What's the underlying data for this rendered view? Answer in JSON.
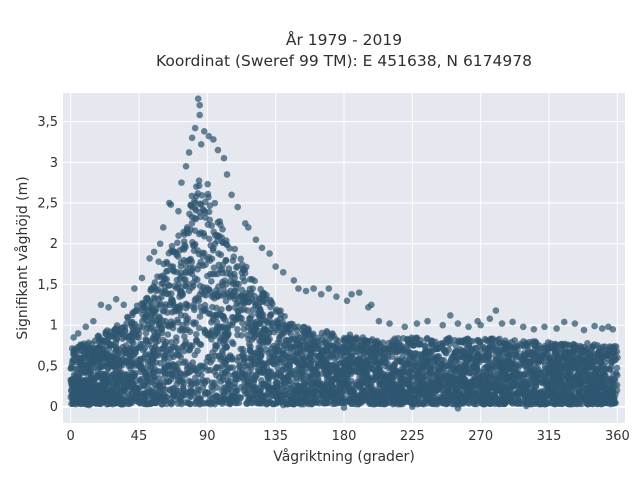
{
  "chart_data": {
    "type": "scatter",
    "title": "År 1979 - 2019",
    "subtitle": "Koordinat (Sweref 99 TM): E 451638, N 6174978",
    "xlabel": "Vågriktning (grader)",
    "ylabel": "Signifikant våghöjd (m)",
    "xlim": [
      -5,
      365
    ],
    "ylim": [
      -0.2,
      3.85
    ],
    "x_ticks": [
      0,
      45,
      90,
      135,
      180,
      225,
      270,
      315,
      360
    ],
    "x_tick_labels": [
      "0",
      "45",
      "90",
      "135",
      "180",
      "225",
      "270",
      "315",
      "360"
    ],
    "y_ticks": [
      0,
      0.5,
      1,
      1.5,
      2,
      2.5,
      3,
      3.5
    ],
    "y_tick_labels": [
      "0",
      "0,5",
      "1",
      "1,5",
      "2",
      "2,5",
      "3",
      "3,5"
    ],
    "grid": true,
    "legend": "none",
    "series": [
      {
        "name": "",
        "color": "#2f5670",
        "envelope": {
          "direction": [
            0,
            10,
            20,
            30,
            40,
            50,
            60,
            70,
            80,
            85,
            90,
            95,
            100,
            110,
            120,
            130,
            140,
            150,
            160,
            180,
            200,
            225,
            250,
            270,
            290,
            315,
            340,
            360
          ],
          "hs_upper": [
            0.75,
            0.8,
            0.9,
            1.0,
            1.15,
            1.4,
            1.7,
            2.1,
            2.6,
            2.8,
            2.75,
            2.5,
            2.2,
            1.9,
            1.6,
            1.35,
            1.15,
            1.0,
            0.95,
            0.9,
            0.85,
            0.85,
            0.85,
            0.85,
            0.82,
            0.8,
            0.78,
            0.75
          ],
          "hs_lower": 0.03
        },
        "outliers": [
          {
            "x": 84,
            "y": 3.78
          },
          {
            "x": 85,
            "y": 3.7
          },
          {
            "x": 85,
            "y": 3.58
          },
          {
            "x": 82,
            "y": 3.42
          },
          {
            "x": 88,
            "y": 3.38
          },
          {
            "x": 91,
            "y": 3.32
          },
          {
            "x": 94,
            "y": 3.28
          },
          {
            "x": 80,
            "y": 3.3
          },
          {
            "x": 86,
            "y": 3.22
          },
          {
            "x": 97,
            "y": 3.15
          },
          {
            "x": 78,
            "y": 3.12
          },
          {
            "x": 101,
            "y": 3.05
          },
          {
            "x": 76,
            "y": 2.95
          },
          {
            "x": 103,
            "y": 2.85
          },
          {
            "x": 73,
            "y": 2.75
          },
          {
            "x": 106,
            "y": 2.6
          },
          {
            "x": 65,
            "y": 2.5
          },
          {
            "x": 66,
            "y": 2.48
          },
          {
            "x": 71,
            "y": 2.4
          },
          {
            "x": 110,
            "y": 2.45
          },
          {
            "x": 115,
            "y": 2.25
          },
          {
            "x": 117,
            "y": 2.2
          },
          {
            "x": 122,
            "y": 2.05
          },
          {
            "x": 61,
            "y": 2.2
          },
          {
            "x": 59,
            "y": 2.0
          },
          {
            "x": 55,
            "y": 1.9
          },
          {
            "x": 52,
            "y": 1.82
          },
          {
            "x": 58,
            "y": 1.78
          },
          {
            "x": 126,
            "y": 1.95
          },
          {
            "x": 131,
            "y": 1.88
          },
          {
            "x": 135,
            "y": 1.72
          },
          {
            "x": 140,
            "y": 1.65
          },
          {
            "x": 147,
            "y": 1.55
          },
          {
            "x": 150,
            "y": 1.45
          },
          {
            "x": 155,
            "y": 1.42
          },
          {
            "x": 160,
            "y": 1.45
          },
          {
            "x": 165,
            "y": 1.38
          },
          {
            "x": 170,
            "y": 1.45
          },
          {
            "x": 175,
            "y": 1.35
          },
          {
            "x": 182,
            "y": 1.3
          },
          {
            "x": 185,
            "y": 1.38
          },
          {
            "x": 190,
            "y": 1.4
          },
          {
            "x": 196,
            "y": 1.22
          },
          {
            "x": 198,
            "y": 1.25
          },
          {
            "x": 203,
            "y": 1.05
          },
          {
            "x": 210,
            "y": 1.02
          },
          {
            "x": 220,
            "y": 0.98
          },
          {
            "x": 228,
            "y": 1.02
          },
          {
            "x": 235,
            "y": 1.05
          },
          {
            "x": 245,
            "y": 1.0
          },
          {
            "x": 250,
            "y": 1.12
          },
          {
            "x": 255,
            "y": 1.02
          },
          {
            "x": 262,
            "y": 0.98
          },
          {
            "x": 268,
            "y": 1.05
          },
          {
            "x": 270,
            "y": 1.0
          },
          {
            "x": 276,
            "y": 1.08
          },
          {
            "x": 280,
            "y": 1.18
          },
          {
            "x": 284,
            "y": 1.02
          },
          {
            "x": 291,
            "y": 1.04
          },
          {
            "x": 298,
            "y": 0.98
          },
          {
            "x": 305,
            "y": 0.95
          },
          {
            "x": 312,
            "y": 0.98
          },
          {
            "x": 320,
            "y": 0.96
          },
          {
            "x": 325,
            "y": 1.04
          },
          {
            "x": 332,
            "y": 1.02
          },
          {
            "x": 338,
            "y": 0.94
          },
          {
            "x": 345,
            "y": 0.99
          },
          {
            "x": 350,
            "y": 0.96
          },
          {
            "x": 354,
            "y": 0.98
          },
          {
            "x": 357,
            "y": 0.95
          },
          {
            "x": 20,
            "y": 1.25
          },
          {
            "x": 25,
            "y": 1.22
          },
          {
            "x": 30,
            "y": 1.32
          },
          {
            "x": 35,
            "y": 1.25
          },
          {
            "x": 42,
            "y": 1.45
          },
          {
            "x": 47,
            "y": 1.58
          },
          {
            "x": 10,
            "y": 0.98
          },
          {
            "x": 5,
            "y": 0.9
          },
          {
            "x": 15,
            "y": 1.05
          },
          {
            "x": 2,
            "y": 0.85
          },
          {
            "x": 12,
            "y": 0.02
          },
          {
            "x": 60,
            "y": 0.03
          },
          {
            "x": 180,
            "y": -0.01
          },
          {
            "x": 225,
            "y": 0.0
          },
          {
            "x": 300,
            "y": 0.01
          },
          {
            "x": 140,
            "y": 0.02
          },
          {
            "x": 255,
            "y": -0.02
          }
        ]
      }
    ]
  }
}
